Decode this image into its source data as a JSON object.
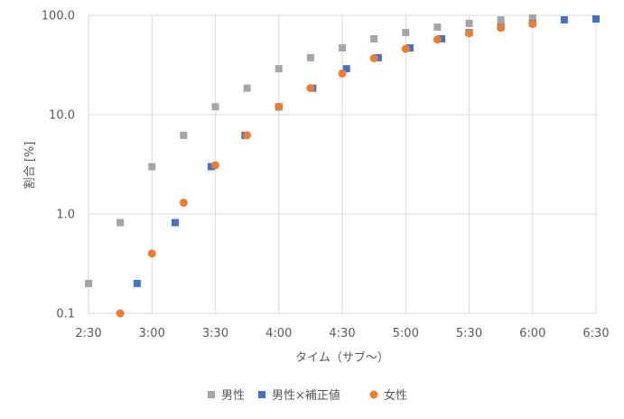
{
  "chart_data": {
    "type": "scatter",
    "title": "",
    "xlabel": "タイム（サブ〜）",
    "ylabel": "割合 [%]",
    "x_scale": "time",
    "y_scale": "log",
    "xlim": [
      "2:30",
      "6:30"
    ],
    "ylim": [
      0.1,
      100
    ],
    "x_ticks": [
      "2:30",
      "3:00",
      "3:30",
      "4:00",
      "4:30",
      "5:00",
      "5:30",
      "6:00",
      "6:30"
    ],
    "y_ticks": [
      "0.1",
      "1.0",
      "10.0",
      "100.0"
    ],
    "grid": true,
    "legend_position": "bottom",
    "series": [
      {
        "name": "男性",
        "marker": "square",
        "color": "#a5a5a5",
        "points": [
          {
            "x": "2:30",
            "y": 0.2
          },
          {
            "x": "2:45",
            "y": 0.82
          },
          {
            "x": "3:00",
            "y": 3.0
          },
          {
            "x": "3:15",
            "y": 6.2
          },
          {
            "x": "3:30",
            "y": 12.0
          },
          {
            "x": "3:45",
            "y": 18.5
          },
          {
            "x": "4:00",
            "y": 29.0
          },
          {
            "x": "4:15",
            "y": 37.5
          },
          {
            "x": "4:30",
            "y": 47.0
          },
          {
            "x": "4:45",
            "y": 58.0
          },
          {
            "x": "5:00",
            "y": 67.0
          },
          {
            "x": "5:15",
            "y": 76.0
          },
          {
            "x": "5:30",
            "y": 83.0
          },
          {
            "x": "5:45",
            "y": 90.0
          },
          {
            "x": "6:00",
            "y": 94.0
          }
        ]
      },
      {
        "name": "男性×補正値",
        "marker": "square",
        "color": "#4472c4",
        "points": [
          {
            "x": "2:53",
            "y": 0.2
          },
          {
            "x": "3:11",
            "y": 0.82
          },
          {
            "x": "3:28",
            "y": 3.0
          },
          {
            "x": "3:44",
            "y": 6.2
          },
          {
            "x": "4:00",
            "y": 12.0
          },
          {
            "x": "4:16",
            "y": 18.5
          },
          {
            "x": "4:32",
            "y": 29.0
          },
          {
            "x": "4:47",
            "y": 37.5
          },
          {
            "x": "5:02",
            "y": 47.0
          },
          {
            "x": "5:17",
            "y": 58.0
          },
          {
            "x": "5:30",
            "y": 67.0
          },
          {
            "x": "5:45",
            "y": 76.0
          },
          {
            "x": "6:00",
            "y": 83.0
          },
          {
            "x": "6:15",
            "y": 90.0
          },
          {
            "x": "6:30",
            "y": 92.0
          }
        ]
      },
      {
        "name": "女性",
        "marker": "circle",
        "color": "#ed7d31",
        "points": [
          {
            "x": "2:45",
            "y": 0.1
          },
          {
            "x": "3:00",
            "y": 0.4
          },
          {
            "x": "3:15",
            "y": 1.3
          },
          {
            "x": "3:30",
            "y": 3.1
          },
          {
            "x": "3:45",
            "y": 6.2
          },
          {
            "x": "4:00",
            "y": 12.0
          },
          {
            "x": "4:15",
            "y": 18.5
          },
          {
            "x": "4:30",
            "y": 26.0
          },
          {
            "x": "4:45",
            "y": 37.0
          },
          {
            "x": "5:00",
            "y": 46.0
          },
          {
            "x": "5:15",
            "y": 57.0
          },
          {
            "x": "5:30",
            "y": 66.0
          },
          {
            "x": "5:45",
            "y": 75.0
          },
          {
            "x": "6:00",
            "y": 82.0
          }
        ]
      }
    ]
  }
}
